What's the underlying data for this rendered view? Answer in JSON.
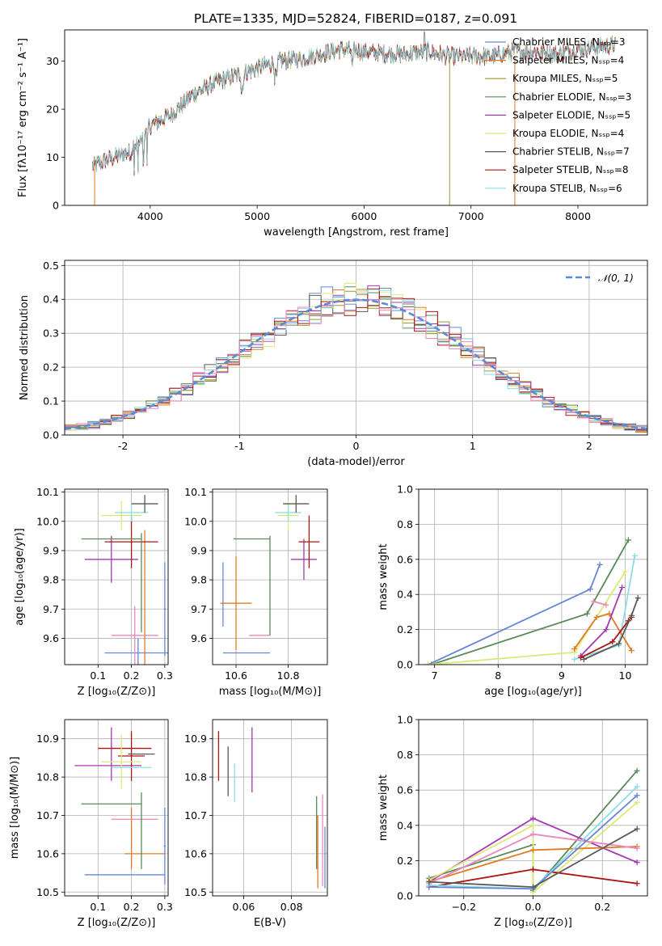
{
  "figure": {
    "title": "PLATE=1335, MJD=52824, FIBERID=0187, z=0.091",
    "colors": [
      "#6687D6",
      "#E07B24",
      "#A3942C",
      "#5A8A58",
      "#A43AB0",
      "#DDE87A",
      "#595959",
      "#B01414",
      "#8DDDE5",
      "#E888BE"
    ]
  },
  "chart_data": [
    {
      "id": "spectrum",
      "type": "line",
      "xlabel": "wavelength [Angstrom, rest frame]",
      "ylabel": "Flux [fλ10⁻¹⁷ erg cm⁻² s⁻¹ A⁻¹]",
      "xlim": [
        3200,
        8650
      ],
      "ylim": [
        0,
        36.5
      ],
      "xticks": [
        4000,
        5000,
        6000,
        7000,
        8000
      ],
      "yticks": [
        0,
        10,
        20,
        30
      ],
      "series": [
        {
          "name": "Chabrier MILES, Nₛₛₚ=3",
          "color": "#6687D6"
        },
        {
          "name": "Salpeter MILES, Nₛₛₚ=4",
          "color": "#E07B24"
        },
        {
          "name": "Kroupa MILES, Nₛₛₚ=5",
          "color": "#A3942C"
        },
        {
          "name": "Chabrier ELODIE, Nₛₛₚ=3",
          "color": "#5A8A58"
        },
        {
          "name": "Salpeter ELODIE, Nₛₛₚ=5",
          "color": "#A43AB0"
        },
        {
          "name": "Kroupa ELODIE, Nₛₛₚ=4",
          "color": "#DDE87A"
        },
        {
          "name": "Chabrier STELIB, Nₛₛₚ=7",
          "color": "#595959"
        },
        {
          "name": "Salpeter STELIB, Nₛₛₚ=8",
          "color": "#B01414"
        },
        {
          "name": "Kroupa STELIB, Nₛₛₚ=6",
          "color": "#8DDDE5"
        }
      ],
      "envelope": [
        [
          3460,
          8.2
        ],
        [
          3600,
          9.5
        ],
        [
          3800,
          11
        ],
        [
          3950,
          14
        ],
        [
          4000,
          16.5
        ],
        [
          4200,
          19
        ],
        [
          4400,
          23
        ],
        [
          4600,
          25.5
        ],
        [
          4800,
          27
        ],
        [
          5000,
          28.5
        ],
        [
          5200,
          30
        ],
        [
          5400,
          30.5
        ],
        [
          5600,
          31.5
        ],
        [
          5800,
          32.5
        ],
        [
          6000,
          32
        ],
        [
          6200,
          31.5
        ],
        [
          6400,
          31.5
        ],
        [
          6600,
          32
        ],
        [
          6800,
          31
        ],
        [
          7000,
          31
        ],
        [
          7200,
          31
        ],
        [
          7400,
          32
        ],
        [
          7600,
          32
        ],
        [
          7800,
          31.5
        ],
        [
          8000,
          32.5
        ],
        [
          8200,
          33
        ],
        [
          8350,
          33.5
        ]
      ]
    },
    {
      "id": "residuals",
      "type": "histogram",
      "xlabel": "(data-model)/error",
      "ylabel": "Normed distribution",
      "xlim": [
        -2.5,
        2.5
      ],
      "ylim": [
        0,
        0.515
      ],
      "xticks": [
        -2,
        -1,
        0,
        1,
        2
      ],
      "yticks": [
        0.0,
        0.1,
        0.2,
        0.3,
        0.4,
        0.5
      ],
      "gaussian_label": "𝒩(0, 1)",
      "gaussian_color": "#5B8BD6",
      "bin_width": 0.1
    },
    {
      "id": "age-vs-Z",
      "type": "errorbar",
      "xlabel": "Z [log₁₀(Z/Z⊙)]",
      "ylabel": "age  [log₁₀(age/yr)]",
      "xlim": [
        0.0,
        0.31
      ],
      "ylim": [
        9.51,
        10.11
      ],
      "xticks": [
        0.1,
        0.2,
        0.3
      ],
      "yticks": [
        9.6,
        9.7,
        9.8,
        9.9,
        10.0,
        10.1
      ],
      "points": [
        {
          "x": 0.22,
          "xerr": 0.1,
          "y": 9.55,
          "yerr": 0.05,
          "color": "#6687D6"
        },
        {
          "x": 0.3,
          "xerr": 0.003,
          "y": 9.7,
          "yerr": 0.16,
          "color": "#6687D6"
        },
        {
          "x": 0.24,
          "xerr": 0.0,
          "y": 9.72,
          "yerr": 0.25,
          "color": "#E07B24"
        },
        {
          "x": 0.21,
          "xerr": 0.07,
          "y": 9.61,
          "yerr": 0.1,
          "color": "#E888BE"
        },
        {
          "x": 0.14,
          "xerr": 0.08,
          "y": 9.87,
          "yerr": 0.08,
          "color": "#A43AB0"
        },
        {
          "x": 0.2,
          "xerr": 0.08,
          "y": 9.93,
          "yerr": 0.09,
          "color": "#B01414"
        },
        {
          "x": 0.14,
          "xerr": 0.09,
          "y": 9.94,
          "yerr": 0.0,
          "color": "#5A8A58"
        },
        {
          "x": 0.23,
          "xerr": 0.0,
          "y": 9.79,
          "yerr": 0.17,
          "color": "#5A8A58"
        },
        {
          "x": 0.17,
          "xerr": 0.06,
          "y": 10.02,
          "yerr": 0.05,
          "color": "#DDE87A"
        },
        {
          "x": 0.2,
          "xerr": 0.05,
          "y": 10.03,
          "yerr": 0.03,
          "color": "#8DDDE5"
        },
        {
          "x": 0.24,
          "xerr": 0.04,
          "y": 10.06,
          "yerr": 0.03,
          "color": "#595959"
        }
      ]
    },
    {
      "id": "age-vs-mass",
      "type": "errorbar",
      "xlabel": "mass [log₁₀(M/M⊙)]",
      "ylabel": "",
      "xlim": [
        10.51,
        10.95
      ],
      "ylim": [
        9.51,
        10.11
      ],
      "xticks": [
        10.6,
        10.8
      ],
      "yticks": [
        9.6,
        9.7,
        9.8,
        9.9,
        10.0,
        10.1
      ],
      "points": [
        {
          "x": 10.64,
          "xerr": 0.09,
          "y": 9.55,
          "yerr": 0.0,
          "color": "#6687D6"
        },
        {
          "x": 10.55,
          "xerr": 0.0,
          "y": 9.75,
          "yerr": 0.11,
          "color": "#6687D6"
        },
        {
          "x": 10.6,
          "xerr": 0.06,
          "y": 9.72,
          "yerr": 0.16,
          "color": "#E07B24"
        },
        {
          "x": 10.69,
          "xerr": 0.04,
          "y": 9.61,
          "yerr": 0.0,
          "color": "#E888BE"
        },
        {
          "x": 10.86,
          "xerr": 0.05,
          "y": 9.87,
          "yerr": 0.07,
          "color": "#A43AB0"
        },
        {
          "x": 10.88,
          "xerr": 0.04,
          "y": 9.93,
          "yerr": 0.09,
          "color": "#B01414"
        },
        {
          "x": 10.66,
          "xerr": 0.07,
          "y": 9.94,
          "yerr": 0.0,
          "color": "#5A8A58"
        },
        {
          "x": 10.73,
          "xerr": 0.0,
          "y": 9.78,
          "yerr": 0.17,
          "color": "#5A8A58"
        },
        {
          "x": 10.8,
          "xerr": 0.04,
          "y": 10.02,
          "yerr": 0.05,
          "color": "#DDE87A"
        },
        {
          "x": 10.8,
          "xerr": 0.05,
          "y": 10.03,
          "yerr": 0.03,
          "color": "#8DDDE5"
        },
        {
          "x": 10.83,
          "xerr": 0.05,
          "y": 10.06,
          "yerr": 0.03,
          "color": "#595959"
        }
      ]
    },
    {
      "id": "mass-weight-vs-age",
      "type": "line",
      "xlabel": "age  [log₁₀(age/yr)]",
      "ylabel": "mass weight",
      "xlim": [
        6.75,
        10.35
      ],
      "ylim": [
        0,
        1.0
      ],
      "xticks": [
        7,
        8,
        9,
        10
      ],
      "yticks": [
        0.0,
        0.2,
        0.4,
        0.6,
        0.8,
        1.0
      ],
      "series": [
        {
          "color": "#6687D6",
          "points": [
            [
              6.9,
              0.0
            ],
            [
              9.45,
              0.43
            ],
            [
              9.6,
              0.57
            ]
          ]
        },
        {
          "color": "#5A8A58",
          "points": [
            [
              6.95,
              0.0
            ],
            [
              9.4,
              0.29
            ],
            [
              10.05,
              0.71
            ]
          ]
        },
        {
          "color": "#DDE87A",
          "points": [
            [
              6.9,
              0.0
            ],
            [
              9.2,
              0.07
            ],
            [
              10.0,
              0.53
            ]
          ]
        },
        {
          "color": "#8DDDE5",
          "points": [
            [
              9.2,
              0.03
            ],
            [
              9.9,
              0.11
            ],
            [
              10.15,
              0.62
            ]
          ]
        },
        {
          "color": "#E07B24",
          "points": [
            [
              9.2,
              0.09
            ],
            [
              9.55,
              0.27
            ],
            [
              9.75,
              0.29
            ],
            [
              10.1,
              0.08
            ]
          ]
        },
        {
          "color": "#A43AB0",
          "points": [
            [
              9.3,
              0.05
            ],
            [
              9.7,
              0.2
            ],
            [
              9.95,
              0.44
            ]
          ]
        },
        {
          "color": "#B01414",
          "points": [
            [
              9.3,
              0.04
            ],
            [
              9.8,
              0.13
            ],
            [
              10.05,
              0.25
            ],
            [
              10.1,
              0.27
            ]
          ]
        },
        {
          "color": "#595959",
          "points": [
            [
              9.35,
              0.03
            ],
            [
              9.9,
              0.12
            ],
            [
              10.1,
              0.28
            ],
            [
              10.2,
              0.38
            ]
          ]
        },
        {
          "color": "#E888BE",
          "points": [
            [
              9.5,
              0.36
            ],
            [
              9.7,
              0.34
            ]
          ]
        }
      ]
    },
    {
      "id": "mass-vs-Z",
      "type": "errorbar",
      "xlabel": "Z [log₁₀(Z/Z⊙)]",
      "ylabel": "mass [log₁₀(M/M⊙)]",
      "xlim": [
        0.0,
        0.31
      ],
      "ylim": [
        10.49,
        10.95
      ],
      "xticks": [
        0.1,
        0.2,
        0.3
      ],
      "yticks": [
        10.5,
        10.6,
        10.7,
        10.8,
        10.9
      ],
      "points": [
        {
          "x": 0.18,
          "xerr": 0.12,
          "y": 10.545,
          "yerr": 0.0,
          "color": "#6687D6"
        },
        {
          "x": 0.3,
          "xerr": 0.003,
          "y": 10.62,
          "yerr": 0.1,
          "color": "#6687D6"
        },
        {
          "x": 0.24,
          "xerr": 0.06,
          "y": 10.6,
          "yerr": 0.0,
          "color": "#E07B24"
        },
        {
          "x": 0.2,
          "xerr": 0.0,
          "y": 10.64,
          "yerr": 0.08,
          "color": "#E07B24"
        },
        {
          "x": 0.21,
          "xerr": 0.07,
          "y": 10.69,
          "yerr": 0.0,
          "color": "#E888BE"
        },
        {
          "x": 0.14,
          "xerr": 0.09,
          "y": 10.73,
          "yerr": 0.0,
          "color": "#5A8A58"
        },
        {
          "x": 0.23,
          "xerr": 0.0,
          "y": 10.66,
          "yerr": 0.1,
          "color": "#5A8A58"
        },
        {
          "x": 0.13,
          "xerr": 0.1,
          "y": 10.83,
          "yerr": 0.0,
          "color": "#A43AB0"
        },
        {
          "x": 0.14,
          "xerr": 0.0,
          "y": 10.86,
          "yerr": 0.07,
          "color": "#A43AB0"
        },
        {
          "x": 0.2,
          "xerr": 0.04,
          "y": 10.855,
          "yerr": 0.065,
          "color": "#B01414"
        },
        {
          "x": 0.18,
          "xerr": 0.08,
          "y": 10.875,
          "yerr": 0.0,
          "color": "#B01414"
        },
        {
          "x": 0.17,
          "xerr": 0.06,
          "y": 10.84,
          "yerr": 0.07,
          "color": "#DDE87A"
        },
        {
          "x": 0.2,
          "xerr": 0.06,
          "y": 10.825,
          "yerr": 0.0,
          "color": "#8DDDE5"
        },
        {
          "x": 0.23,
          "xerr": 0.04,
          "y": 10.86,
          "yerr": 0.0,
          "color": "#595959"
        }
      ]
    },
    {
      "id": "mass-vs-EBV",
      "type": "errorbar",
      "xlabel": "E(B-V)",
      "ylabel": "",
      "xlim": [
        0.047,
        0.095
      ],
      "ylim": [
        10.49,
        10.95
      ],
      "xticks": [
        0.06,
        0.08
      ],
      "yticks": [
        10.5,
        10.6,
        10.7,
        10.8,
        10.9
      ],
      "points": [
        {
          "x": 0.0495,
          "xerr": 0.0,
          "y": 10.855,
          "yerr": 0.065,
          "color": "#B01414"
        },
        {
          "x": 0.0535,
          "xerr": 0.0,
          "y": 10.815,
          "yerr": 0.065,
          "color": "#595959"
        },
        {
          "x": 0.0562,
          "xerr": 0.0,
          "y": 10.785,
          "yerr": 0.05,
          "color": "#8DDDE5"
        },
        {
          "x": 0.0635,
          "xerr": 0.0,
          "y": 10.845,
          "yerr": 0.085,
          "color": "#A43AB0"
        },
        {
          "x": 0.0905,
          "xerr": 0.0,
          "y": 10.655,
          "yerr": 0.095,
          "color": "#5A8A58"
        },
        {
          "x": 0.091,
          "xerr": 0.0,
          "y": 10.605,
          "yerr": 0.095,
          "color": "#E07B24"
        },
        {
          "x": 0.093,
          "xerr": 0.0,
          "y": 10.635,
          "yerr": 0.12,
          "color": "#E888BE"
        },
        {
          "x": 0.094,
          "xerr": 0.0,
          "y": 10.59,
          "yerr": 0.08,
          "color": "#6687D6"
        }
      ]
    },
    {
      "id": "mass-weight-vs-Z",
      "type": "line",
      "xlabel": "Z [log₁₀(Z/Z⊙)]",
      "ylabel": "mass weight",
      "xlim": [
        -0.33,
        0.33
      ],
      "ylim": [
        0,
        1.0
      ],
      "xticks": [
        -0.2,
        0.0,
        0.2
      ],
      "yticks": [
        0.0,
        0.2,
        0.4,
        0.6,
        0.8,
        1.0
      ],
      "series": [
        {
          "color": "#5A8A58",
          "points": [
            [
              -0.3,
              0.1
            ],
            [
              0.0,
              0.29
            ],
            [
              0.0,
              0.03
            ],
            [
              0.3,
              0.71
            ]
          ]
        },
        {
          "color": "#A43AB0",
          "points": [
            [
              -0.3,
              0.08
            ],
            [
              0.0,
              0.44
            ],
            [
              0.3,
              0.19
            ]
          ]
        },
        {
          "color": "#DDE87A",
          "points": [
            [
              -0.3,
              0.09
            ],
            [
              0.0,
              0.4
            ],
            [
              0.0,
              0.02
            ],
            [
              0.3,
              0.53
            ]
          ]
        },
        {
          "color": "#E07B24",
          "points": [
            [
              -0.3,
              0.08
            ],
            [
              0.0,
              0.26
            ],
            [
              0.3,
              0.28
            ]
          ]
        },
        {
          "color": "#E888BE",
          "points": [
            [
              -0.3,
              0.07
            ],
            [
              0.0,
              0.35
            ],
            [
              0.3,
              0.27
            ]
          ]
        },
        {
          "color": "#B01414",
          "points": [
            [
              -0.3,
              0.05
            ],
            [
              0.0,
              0.15
            ],
            [
              0.3,
              0.07
            ]
          ]
        },
        {
          "color": "#8DDDE5",
          "points": [
            [
              -0.3,
              0.06
            ],
            [
              0.0,
              0.04
            ],
            [
              0.3,
              0.62
            ]
          ]
        },
        {
          "color": "#6687D6",
          "points": [
            [
              -0.3,
              0.05
            ],
            [
              0.0,
              0.04
            ],
            [
              0.3,
              0.57
            ]
          ]
        },
        {
          "color": "#595959",
          "points": [
            [
              -0.3,
              0.08
            ],
            [
              0.0,
              0.05
            ],
            [
              0.3,
              0.38
            ]
          ]
        }
      ]
    }
  ]
}
